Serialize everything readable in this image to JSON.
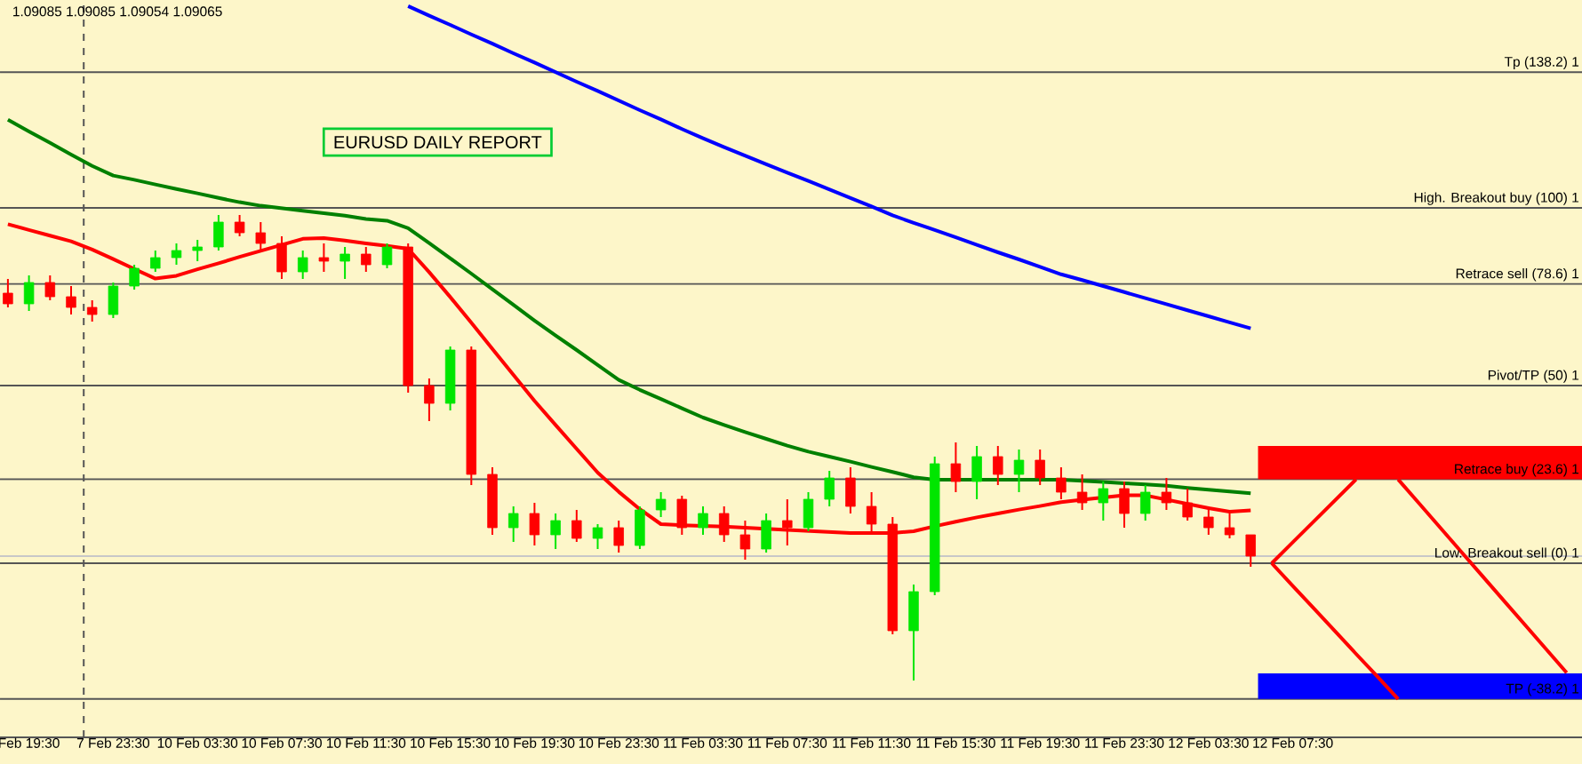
{
  "chart_data": {
    "type": "candlestick",
    "title": "EURUSD DAILY REPORT",
    "annotations": [
      "1.09085 1.09085 1.09054 1.09065"
    ],
    "categories": [
      null,
      "Feb 19:30",
      null,
      null,
      null,
      "7 Feb 23:30",
      null,
      null,
      null,
      "10 Feb 03:30",
      null,
      null,
      null,
      "10 Feb 07:30",
      null,
      null,
      null,
      "10 Feb 11:30",
      null,
      null,
      null,
      "10 Feb 15:30",
      null,
      null,
      null,
      "10 Feb 19:30",
      null,
      null,
      null,
      "10 Feb 23:30",
      null,
      null,
      null,
      "11 Feb 03:30",
      null,
      null,
      null,
      "11 Feb 07:30",
      null,
      null,
      null,
      "11 Feb 11:30",
      null,
      null,
      null,
      "11 Feb 15:30",
      null,
      null,
      null,
      "11 Feb 19:30",
      null,
      null,
      null,
      "11 Feb 23:30",
      null,
      null,
      null,
      "12 Feb 03:30",
      null,
      null,
      null,
      "12 Feb 07:30",
      null,
      null,
      null,
      null,
      null,
      null,
      null,
      null,
      null,
      null,
      null,
      null,
      null
    ],
    "ohlc": [
      [
        76,
        80,
        72,
        73
      ],
      [
        73,
        81,
        71,
        79
      ],
      [
        79,
        81,
        74,
        75
      ],
      [
        75,
        78,
        70,
        72
      ],
      [
        72,
        74,
        68,
        70
      ],
      [
        70,
        79,
        69,
        78
      ],
      [
        78,
        84,
        77,
        83
      ],
      [
        83,
        88,
        82,
        86
      ],
      [
        86,
        90,
        84,
        88
      ],
      [
        88,
        91,
        85,
        89
      ],
      [
        89,
        98,
        88,
        96
      ],
      [
        96,
        98,
        92,
        93
      ],
      [
        93,
        96,
        88,
        90
      ],
      [
        90,
        92,
        80,
        82
      ],
      [
        82,
        88,
        80,
        86
      ],
      [
        86,
        90,
        82,
        85
      ],
      [
        85,
        89,
        80,
        87
      ],
      [
        87,
        89,
        82,
        84
      ],
      [
        84,
        90,
        83,
        89
      ],
      [
        89,
        90,
        48,
        50
      ],
      [
        50,
        52,
        40,
        45
      ],
      [
        45,
        61,
        43,
        60
      ],
      [
        60,
        61,
        22,
        25
      ],
      [
        25,
        27,
        8,
        10
      ],
      [
        10,
        16,
        6,
        14
      ],
      [
        14,
        17,
        5,
        8
      ],
      [
        8,
        14,
        4,
        12
      ],
      [
        12,
        15,
        6,
        7
      ],
      [
        7,
        11,
        4,
        10
      ],
      [
        10,
        12,
        3,
        5
      ],
      [
        5,
        16,
        4,
        15
      ],
      [
        15,
        20,
        13,
        18
      ],
      [
        18,
        19,
        8,
        10
      ],
      [
        10,
        16,
        8,
        14
      ],
      [
        14,
        16,
        6,
        8
      ],
      [
        8,
        12,
        1,
        4
      ],
      [
        4,
        14,
        3,
        12
      ],
      [
        12,
        18,
        5,
        10
      ],
      [
        10,
        20,
        9,
        18
      ],
      [
        18,
        26,
        16,
        24
      ],
      [
        24,
        27,
        14,
        16
      ],
      [
        16,
        20,
        8,
        11
      ],
      [
        11,
        13,
        -20,
        -19
      ],
      [
        -19,
        -6,
        -33,
        -8
      ],
      [
        -8,
        30,
        -9,
        28
      ],
      [
        28,
        34,
        20,
        23
      ],
      [
        23,
        33,
        18,
        30
      ],
      [
        30,
        33,
        22,
        25
      ],
      [
        25,
        32,
        20,
        29
      ],
      [
        29,
        32,
        22,
        24
      ],
      [
        24,
        27,
        18,
        20
      ],
      [
        20,
        25,
        15,
        17
      ],
      [
        17,
        23,
        12,
        21
      ],
      [
        21,
        23,
        10,
        14
      ],
      [
        14,
        22,
        12,
        20
      ],
      [
        20,
        24,
        15,
        17
      ],
      [
        17,
        21,
        12,
        13
      ],
      [
        13,
        16,
        8,
        10
      ],
      [
        10,
        14,
        7,
        8
      ],
      [
        8,
        8,
        -1,
        2
      ],
      null,
      null,
      null,
      null,
      null,
      null,
      null,
      null,
      null,
      null,
      null,
      null,
      null,
      null,
      null
    ],
    "series": [
      {
        "type": "line",
        "color": "#ff0000",
        "values": [
          95.4,
          93.8,
          92.2,
          90.6,
          88.3,
          85.6,
          82.8,
          80.1,
          80.9,
          82.7,
          84.4,
          86.2,
          87.9,
          89.6,
          91.3,
          91.5,
          90.8,
          90.0,
          89.3,
          88.5,
          81.9,
          74.9,
          67.7,
          60.3,
          53.0,
          45.7,
          38.9,
          32.2,
          25.5,
          20.1,
          15.2,
          11.0,
          10.7,
          10.5,
          10.3,
          10.0,
          9.7,
          9.4,
          9.1,
          8.8,
          8.5,
          8.5,
          8.5,
          9.0,
          10.4,
          11.7,
          12.9,
          14.0,
          15.1,
          16.1,
          17.2,
          17.9,
          18.5,
          19.1,
          19.1,
          17.9,
          16.7,
          15.5,
          14.5,
          14.9,
          null,
          null,
          null,
          null,
          null,
          null,
          null,
          null,
          null,
          null,
          null,
          null,
          null,
          null,
          null
        ]
      },
      {
        "type": "line",
        "color": "#008000",
        "values": [
          124.8,
          121.5,
          118.3,
          115.0,
          111.8,
          109.1,
          107.9,
          106.6,
          105.3,
          104.1,
          102.8,
          101.6,
          100.6,
          99.9,
          99.2,
          98.5,
          97.8,
          96.9,
          96.4,
          94.3,
          90.1,
          85.8,
          81.5,
          77.1,
          72.7,
          68.3,
          64.1,
          60.0,
          55.8,
          51.6,
          48.8,
          46.2,
          43.6,
          41.0,
          38.9,
          36.9,
          35.0,
          33.1,
          31.4,
          30.0,
          28.6,
          27.1,
          25.7,
          24.2,
          23.5,
          23.5,
          23.5,
          23.5,
          23.5,
          23.5,
          23.5,
          23.2,
          22.9,
          22.5,
          22.2,
          21.8,
          21.2,
          20.7,
          20.2,
          19.7,
          null,
          null,
          null,
          null,
          null,
          null,
          null,
          null,
          null,
          null,
          null,
          null,
          null,
          null,
          null
        ]
      },
      {
        "type": "line",
        "color": "#0000ff",
        "values": [
          null,
          null,
          null,
          null,
          null,
          null,
          null,
          null,
          null,
          null,
          null,
          null,
          null,
          null,
          null,
          null,
          null,
          null,
          null,
          156.8,
          154.1,
          151.5,
          148.8,
          146.2,
          143.5,
          140.9,
          138.2,
          135.5,
          132.9,
          130.2,
          127.5,
          124.9,
          122.2,
          119.6,
          117.1,
          114.7,
          112.3,
          109.9,
          107.6,
          105.2,
          102.8,
          100.4,
          97.9,
          95.8,
          93.8,
          91.7,
          89.6,
          87.5,
          85.5,
          83.4,
          81.3,
          79.7,
          78.0,
          76.3,
          74.6,
          72.9,
          71.2,
          69.5,
          67.8,
          66.1,
          null,
          null,
          null,
          null,
          null,
          null,
          null,
          null,
          null,
          null,
          null,
          null,
          null,
          null,
          null
        ]
      },
      {
        "type": "line",
        "color": "#ff0000",
        "values": [
          null,
          null,
          null,
          null,
          null,
          null,
          null,
          null,
          null,
          null,
          null,
          null,
          null,
          null,
          null,
          null,
          null,
          null,
          null,
          null,
          null,
          null,
          null,
          null,
          null,
          null,
          null,
          null,
          null,
          null,
          null,
          null,
          null,
          null,
          null,
          null,
          null,
          null,
          null,
          null,
          null,
          null,
          null,
          null,
          null,
          null,
          null,
          null,
          null,
          null,
          null,
          null,
          null,
          null,
          null,
          null,
          null,
          null,
          null,
          null,
          0,
          5.9,
          11.8,
          17.7,
          23.6,
          null,
          null,
          null,
          null,
          null,
          null,
          null,
          null,
          null,
          null
        ]
      },
      {
        "type": "line",
        "color": "#ff0000",
        "values": [
          null,
          null,
          null,
          null,
          null,
          null,
          null,
          null,
          null,
          null,
          null,
          null,
          null,
          null,
          null,
          null,
          null,
          null,
          null,
          null,
          null,
          null,
          null,
          null,
          null,
          null,
          null,
          null,
          null,
          null,
          null,
          null,
          null,
          null,
          null,
          null,
          null,
          null,
          null,
          null,
          null,
          null,
          null,
          null,
          null,
          null,
          null,
          null,
          null,
          null,
          null,
          null,
          null,
          null,
          null,
          null,
          null,
          null,
          null,
          null,
          null,
          null,
          null,
          null,
          null,
          null,
          23.6,
          16.8,
          10,
          3.2,
          -3.6,
          -10.4,
          -17.2,
          -24,
          -30.8
        ]
      },
      {
        "type": "line",
        "color": "#ff0000",
        "values": [
          null,
          null,
          null,
          null,
          null,
          null,
          null,
          null,
          null,
          null,
          null,
          null,
          null,
          null,
          null,
          null,
          null,
          null,
          null,
          null,
          null,
          null,
          null,
          null,
          null,
          null,
          null,
          null,
          null,
          null,
          null,
          null,
          null,
          null,
          null,
          null,
          null,
          null,
          null,
          null,
          null,
          null,
          null,
          null,
          null,
          null,
          null,
          null,
          null,
          null,
          null,
          null,
          null,
          null,
          null,
          null,
          null,
          null,
          null,
          null,
          0,
          -6.4,
          -12.7,
          -19.1,
          -25.5,
          -31.8,
          -38.2,
          null,
          null,
          null,
          null,
          null,
          null,
          null,
          null
        ]
      }
    ],
    "ylim": [
      -49,
      158.5
    ],
    "bands": [
      {
        "axis": "y",
        "from": 23.6,
        "to": 33,
        "color": "#ff0000"
      },
      {
        "axis": "y",
        "from": -38.2,
        "to": -31,
        "color": "#0000ff"
      }
    ],
    "ref_lines": [
      {
        "axis": "y",
        "value": 2,
        "color": "#c8c8c8"
      },
      {
        "axis": "y",
        "value": 138.2,
        "label": "Tp (138.2)  1",
        "color": "#555555"
      },
      {
        "axis": "y",
        "value": 100,
        "label": "High. Breakout buy (100)  1",
        "color": "#555555"
      },
      {
        "axis": "y",
        "value": 78.6,
        "label": "Retrace sell (78.6)  1",
        "color": "#555555"
      },
      {
        "axis": "y",
        "value": 50,
        "label": "Pivot/TP (50)  1",
        "color": "#555555"
      },
      {
        "axis": "y",
        "value": 23.6,
        "label": "Retrace buy (23.6)  1",
        "color": "#555555"
      },
      {
        "axis": "y",
        "value": 0,
        "label": "Low. Breakout sell (0)  1",
        "color": "#555555"
      },
      {
        "axis": "y",
        "value": -38.2,
        "label": "TP (-38.2)  1",
        "color": "#555555"
      }
    ],
    "tick_labels": "x"
  }
}
